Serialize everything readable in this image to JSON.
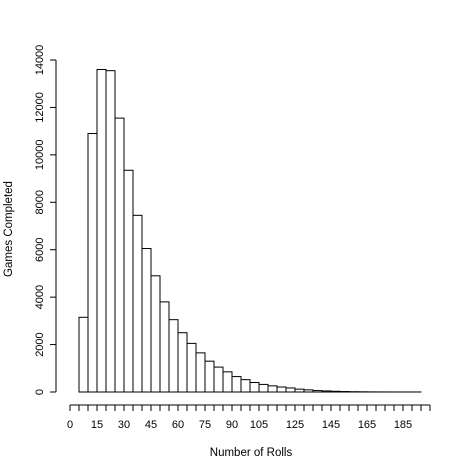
{
  "chart_data": {
    "type": "bar",
    "subtype": "histogram",
    "title": "",
    "xlabel": "Number of Rolls",
    "ylabel": "Games Completed",
    "bin_width": 5,
    "bin_start": 5,
    "x_tick_labels": [
      "0",
      "15",
      "30",
      "45",
      "60",
      "75",
      "90",
      "105",
      "125",
      "145",
      "165",
      "185"
    ],
    "y_tick_labels": [
      "0",
      "2000",
      "4000",
      "6000",
      "8000",
      "10000",
      "12000",
      "14000"
    ],
    "y_ticks": [
      0,
      2000,
      4000,
      6000,
      8000,
      10000,
      12000,
      14000
    ],
    "xlim": [
      0,
      205
    ],
    "ylim": [
      0,
      14000
    ],
    "values": [
      3150,
      10900,
      13600,
      13550,
      11550,
      9350,
      7450,
      6050,
      4900,
      3800,
      3050,
      2500,
      2050,
      1650,
      1300,
      1050,
      850,
      650,
      520,
      400,
      320,
      260,
      210,
      170,
      120,
      90,
      60,
      45,
      30,
      20,
      12,
      8,
      5,
      3,
      2,
      1,
      1,
      1
    ],
    "grid": false,
    "colors": {
      "fill": "#ffffff",
      "stroke": "#000000"
    }
  }
}
